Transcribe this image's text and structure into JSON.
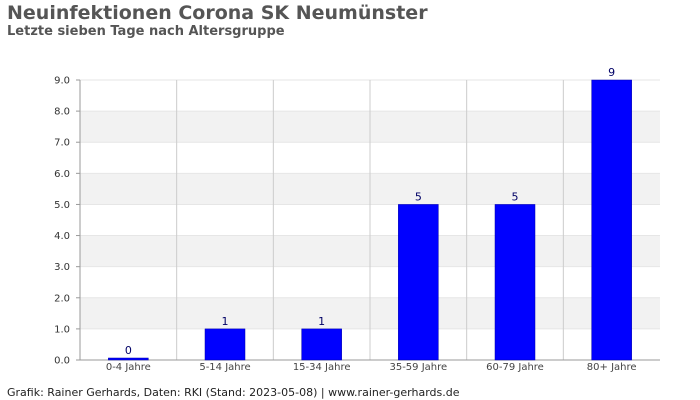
{
  "header": {
    "title": "Neuinfektionen Corona SK Neumünster",
    "subtitle": "Letzte sieben Tage nach Altersgruppe"
  },
  "footer": {
    "text": "Grafik: Rainer Gerhards, Daten: RKI (Stand: 2023-05-08) | www.rainer-gerhards.de"
  },
  "chart_data": {
    "type": "bar",
    "title": "Neuinfektionen Corona SK Neumünster",
    "subtitle": "Letzte sieben Tage nach Altersgruppe",
    "xlabel": "",
    "ylabel": "",
    "categories": [
      "0-4 Jahre",
      "5-14 Jahre",
      "15-34 Jahre",
      "35-59 Jahre",
      "60-79 Jahre",
      "80+ Jahre"
    ],
    "values": [
      0,
      1,
      1,
      5,
      5,
      9
    ],
    "ylim": [
      0,
      9
    ],
    "yticks": [
      "0.0",
      "1.0",
      "2.0",
      "3.0",
      "4.0",
      "5.0",
      "6.0",
      "7.0",
      "8.0",
      "9.0"
    ],
    "grid": true,
    "bar_color": "#0000ff",
    "label_color": "#000066"
  }
}
